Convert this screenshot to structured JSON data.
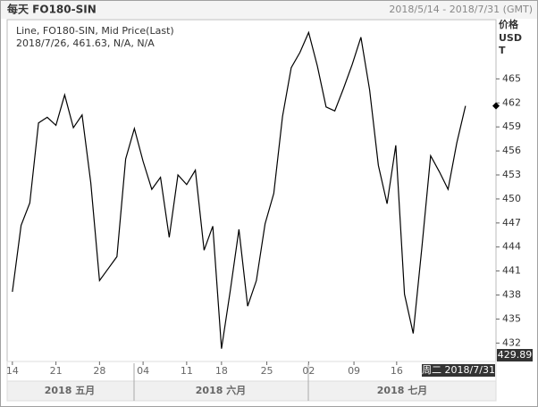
{
  "chart_data": {
    "type": "line",
    "title": "每天 FO180-SIN",
    "date_range": "2018/5/14 - 2018/7/31 (GMT)",
    "legend_lines": [
      "Line, FO180-SIN, Mid Price(Last)",
      "2018/7/26, 461.63, N/A, N/A"
    ],
    "y_axis_label": [
      "价格",
      "USD",
      "T"
    ],
    "series": [
      {
        "name": "FO180-SIN",
        "color": "#000000",
        "values": [
          438.4,
          446.7,
          449.5,
          459.5,
          460.2,
          459.2,
          463.0,
          458.9,
          460.5,
          452.0,
          439.8,
          441.3,
          442.8,
          455.0,
          458.8,
          454.7,
          451.2,
          452.7,
          445.2,
          453.0,
          451.8,
          453.6,
          443.6,
          446.6,
          431.3,
          438.5,
          446.2,
          436.6,
          439.8,
          446.9,
          450.7,
          460.3,
          466.4,
          468.3,
          470.8,
          466.6,
          461.5,
          461.0,
          463.8,
          466.8,
          470.2,
          463.6,
          454.2,
          449.4,
          456.7,
          438.1,
          433.2,
          444.0,
          455.4,
          453.4,
          451.2,
          457.0,
          461.63
        ]
      }
    ],
    "x": [
      0,
      1,
      2,
      3,
      4,
      5,
      6,
      7,
      8,
      9,
      10,
      11,
      12,
      13,
      14,
      15,
      16,
      17,
      18,
      19,
      20,
      21,
      22,
      23,
      24,
      25,
      26,
      27,
      28,
      29,
      30,
      31,
      32,
      33,
      34,
      35,
      36,
      37,
      38,
      39,
      40,
      41,
      42,
      43,
      44,
      45,
      46,
      47,
      48,
      49,
      50,
      51,
      52
    ],
    "xlim": [
      -0.6,
      55.5
    ],
    "xticks": [
      {
        "value": 0,
        "label": "14"
      },
      {
        "value": 5,
        "label": "21"
      },
      {
        "value": 10,
        "label": "28"
      },
      {
        "value": 15,
        "label": "04"
      },
      {
        "value": 20,
        "label": "11"
      },
      {
        "value": 24,
        "label": "18"
      },
      {
        "value": 29.2,
        "label": "25"
      },
      {
        "value": 34,
        "label": "02"
      },
      {
        "value": 39.2,
        "label": "09"
      },
      {
        "value": 44.1,
        "label": "16"
      }
    ],
    "x_groups": [
      "2018 五月",
      "2018 六月",
      "2018 七月"
    ],
    "ylim": [
      429.7,
      472.4
    ],
    "yticks": [
      432,
      435,
      438,
      441,
      444,
      447,
      450,
      453,
      456,
      459,
      462,
      465
    ],
    "crosshair_x_label": "周二 2018/7/31",
    "crosshair_y_label": "429.89",
    "grid": false
  }
}
